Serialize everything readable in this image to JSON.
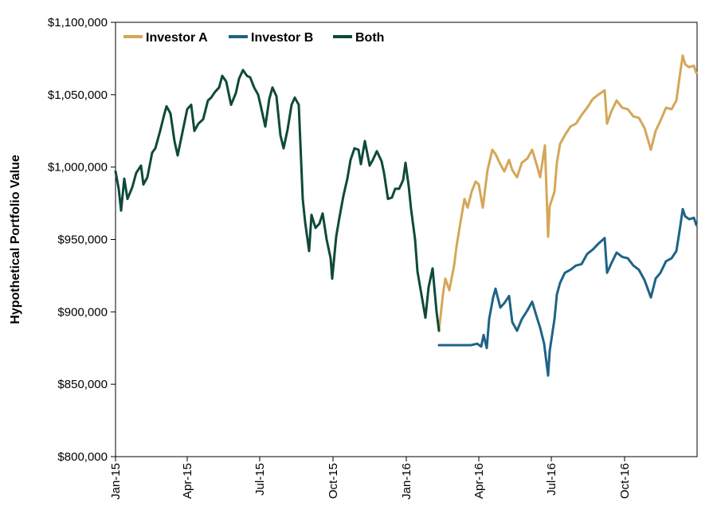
{
  "chart_data": {
    "type": "line",
    "title": "",
    "xlabel": "",
    "ylabel": "Hypothetical Portfolio Value",
    "ylim": [
      800000,
      1100000
    ],
    "xlim": [
      "2015-01-01",
      "2016-12-31"
    ],
    "grid": false,
    "legend_position": "top-left",
    "x_ticks": [
      {
        "date": "2015-01-01",
        "label": "Jan-15"
      },
      {
        "date": "2015-04-01",
        "label": "Apr-15"
      },
      {
        "date": "2015-07-01",
        "label": "Jul-15"
      },
      {
        "date": "2015-10-01",
        "label": "Oct-15"
      },
      {
        "date": "2016-01-01",
        "label": "Jan-16"
      },
      {
        "date": "2016-04-01",
        "label": "Apr-16"
      },
      {
        "date": "2016-07-01",
        "label": "Jul-16"
      },
      {
        "date": "2016-10-01",
        "label": "Oct-16"
      }
    ],
    "y_ticks": [
      {
        "value": 800000,
        "label": "$800,000"
      },
      {
        "value": 850000,
        "label": "$850,000"
      },
      {
        "value": 900000,
        "label": "$900,000"
      },
      {
        "value": 950000,
        "label": "$950,000"
      },
      {
        "value": 1000000,
        "label": "$1,000,000"
      },
      {
        "value": 1050000,
        "label": "$1,050,000"
      },
      {
        "value": 1100000,
        "label": "$1,100,000"
      }
    ],
    "series": [
      {
        "name": "Investor A",
        "color": "#D4A758",
        "points": [
          [
            "2016-02-11",
            887000
          ],
          [
            "2016-02-16",
            912000
          ],
          [
            "2016-02-19",
            923000
          ],
          [
            "2016-02-24",
            915000
          ],
          [
            "2016-03-01",
            932000
          ],
          [
            "2016-03-04",
            945000
          ],
          [
            "2016-03-09",
            962000
          ],
          [
            "2016-03-14",
            978000
          ],
          [
            "2016-03-18",
            972000
          ],
          [
            "2016-03-23",
            983000
          ],
          [
            "2016-03-28",
            990000
          ],
          [
            "2016-04-01",
            988000
          ],
          [
            "2016-04-06",
            972000
          ],
          [
            "2016-04-12",
            998000
          ],
          [
            "2016-04-18",
            1012000
          ],
          [
            "2016-04-22",
            1009000
          ],
          [
            "2016-04-28",
            1002000
          ],
          [
            "2016-05-03",
            997000
          ],
          [
            "2016-05-09",
            1005000
          ],
          [
            "2016-05-13",
            998000
          ],
          [
            "2016-05-19",
            993000
          ],
          [
            "2016-05-25",
            1003000
          ],
          [
            "2016-06-01",
            1006000
          ],
          [
            "2016-06-07",
            1012000
          ],
          [
            "2016-06-13",
            1001000
          ],
          [
            "2016-06-17",
            993000
          ],
          [
            "2016-06-23",
            1015000
          ],
          [
            "2016-06-27",
            952000
          ],
          [
            "2016-06-29",
            973000
          ],
          [
            "2016-07-05",
            983000
          ],
          [
            "2016-07-08",
            1003000
          ],
          [
            "2016-07-12",
            1016000
          ],
          [
            "2016-07-18",
            1022000
          ],
          [
            "2016-07-25",
            1028000
          ],
          [
            "2016-08-01",
            1030000
          ],
          [
            "2016-08-08",
            1036000
          ],
          [
            "2016-08-15",
            1041000
          ],
          [
            "2016-08-22",
            1047000
          ],
          [
            "2016-08-29",
            1050000
          ],
          [
            "2016-09-06",
            1053000
          ],
          [
            "2016-09-09",
            1030000
          ],
          [
            "2016-09-14",
            1038000
          ],
          [
            "2016-09-21",
            1046000
          ],
          [
            "2016-09-28",
            1041000
          ],
          [
            "2016-10-05",
            1040000
          ],
          [
            "2016-10-12",
            1035000
          ],
          [
            "2016-10-19",
            1034000
          ],
          [
            "2016-10-26",
            1027000
          ],
          [
            "2016-11-03",
            1012000
          ],
          [
            "2016-11-09",
            1025000
          ],
          [
            "2016-11-15",
            1032000
          ],
          [
            "2016-11-22",
            1041000
          ],
          [
            "2016-11-29",
            1040000
          ],
          [
            "2016-12-05",
            1046000
          ],
          [
            "2016-12-09",
            1062000
          ],
          [
            "2016-12-13",
            1077000
          ],
          [
            "2016-12-16",
            1071000
          ],
          [
            "2016-12-21",
            1069000
          ],
          [
            "2016-12-27",
            1070000
          ],
          [
            "2016-12-30",
            1065000
          ]
        ]
      },
      {
        "name": "Investor B",
        "color": "#1E6387",
        "points": [
          [
            "2016-02-11",
            877000
          ],
          [
            "2016-03-02",
            877000
          ],
          [
            "2016-03-15",
            877000
          ],
          [
            "2016-03-22",
            877000
          ],
          [
            "2016-03-30",
            878000
          ],
          [
            "2016-04-04",
            876000
          ],
          [
            "2016-04-07",
            884000
          ],
          [
            "2016-04-11",
            875000
          ],
          [
            "2016-04-14",
            895000
          ],
          [
            "2016-04-19",
            910000
          ],
          [
            "2016-04-22",
            916000
          ],
          [
            "2016-04-28",
            903000
          ],
          [
            "2016-05-03",
            906000
          ],
          [
            "2016-05-09",
            911000
          ],
          [
            "2016-05-13",
            893000
          ],
          [
            "2016-05-19",
            887000
          ],
          [
            "2016-05-25",
            895000
          ],
          [
            "2016-06-01",
            901000
          ],
          [
            "2016-06-07",
            907000
          ],
          [
            "2016-06-13",
            896000
          ],
          [
            "2016-06-17",
            889000
          ],
          [
            "2016-06-22",
            878000
          ],
          [
            "2016-06-27",
            856000
          ],
          [
            "2016-06-29",
            873000
          ],
          [
            "2016-07-05",
            895000
          ],
          [
            "2016-07-08",
            912000
          ],
          [
            "2016-07-12",
            920000
          ],
          [
            "2016-07-18",
            927000
          ],
          [
            "2016-07-25",
            929000
          ],
          [
            "2016-08-01",
            932000
          ],
          [
            "2016-08-08",
            933000
          ],
          [
            "2016-08-15",
            940000
          ],
          [
            "2016-08-22",
            943000
          ],
          [
            "2016-08-29",
            947000
          ],
          [
            "2016-09-06",
            951000
          ],
          [
            "2016-09-09",
            927000
          ],
          [
            "2016-09-14",
            933000
          ],
          [
            "2016-09-21",
            941000
          ],
          [
            "2016-09-28",
            938000
          ],
          [
            "2016-10-05",
            937000
          ],
          [
            "2016-10-12",
            932000
          ],
          [
            "2016-10-19",
            929000
          ],
          [
            "2016-10-26",
            922000
          ],
          [
            "2016-11-03",
            910000
          ],
          [
            "2016-11-09",
            923000
          ],
          [
            "2016-11-15",
            927000
          ],
          [
            "2016-11-22",
            935000
          ],
          [
            "2016-11-29",
            937000
          ],
          [
            "2016-12-05",
            942000
          ],
          [
            "2016-12-09",
            956000
          ],
          [
            "2016-12-13",
            971000
          ],
          [
            "2016-12-16",
            966000
          ],
          [
            "2016-12-21",
            964000
          ],
          [
            "2016-12-27",
            965000
          ],
          [
            "2016-12-30",
            960000
          ]
        ]
      },
      {
        "name": "Both",
        "color": "#0E4A3A",
        "points": [
          [
            "2015-01-01",
            997000
          ],
          [
            "2015-01-05",
            985000
          ],
          [
            "2015-01-08",
            970000
          ],
          [
            "2015-01-12",
            992000
          ],
          [
            "2015-01-16",
            978000
          ],
          [
            "2015-01-22",
            986000
          ],
          [
            "2015-01-27",
            996000
          ],
          [
            "2015-02-02",
            1001000
          ],
          [
            "2015-02-05",
            988000
          ],
          [
            "2015-02-10",
            993000
          ],
          [
            "2015-02-16",
            1010000
          ],
          [
            "2015-02-20",
            1013000
          ],
          [
            "2015-02-26",
            1025000
          ],
          [
            "2015-03-03",
            1036000
          ],
          [
            "2015-03-06",
            1042000
          ],
          [
            "2015-03-11",
            1037000
          ],
          [
            "2015-03-16",
            1018000
          ],
          [
            "2015-03-20",
            1008000
          ],
          [
            "2015-03-26",
            1024000
          ],
          [
            "2015-04-01",
            1040000
          ],
          [
            "2015-04-06",
            1043000
          ],
          [
            "2015-04-10",
            1025000
          ],
          [
            "2015-04-15",
            1030000
          ],
          [
            "2015-04-21",
            1033000
          ],
          [
            "2015-04-27",
            1046000
          ],
          [
            "2015-05-01",
            1048000
          ],
          [
            "2015-05-06",
            1052000
          ],
          [
            "2015-05-11",
            1055000
          ],
          [
            "2015-05-15",
            1063000
          ],
          [
            "2015-05-20",
            1059000
          ],
          [
            "2015-05-26",
            1043000
          ],
          [
            "2015-06-01",
            1051000
          ],
          [
            "2015-06-05",
            1061000
          ],
          [
            "2015-06-10",
            1067000
          ],
          [
            "2015-06-15",
            1063000
          ],
          [
            "2015-06-19",
            1062000
          ],
          [
            "2015-06-24",
            1055000
          ],
          [
            "2015-06-29",
            1050000
          ],
          [
            "2015-07-02",
            1043000
          ],
          [
            "2015-07-08",
            1028000
          ],
          [
            "2015-07-13",
            1047000
          ],
          [
            "2015-07-17",
            1055000
          ],
          [
            "2015-07-22",
            1049000
          ],
          [
            "2015-07-27",
            1022000
          ],
          [
            "2015-07-31",
            1013000
          ],
          [
            "2015-08-05",
            1026000
          ],
          [
            "2015-08-10",
            1043000
          ],
          [
            "2015-08-14",
            1048000
          ],
          [
            "2015-08-19",
            1043000
          ],
          [
            "2015-08-24",
            978000
          ],
          [
            "2015-08-27",
            962000
          ],
          [
            "2015-09-01",
            942000
          ],
          [
            "2015-09-04",
            967000
          ],
          [
            "2015-09-09",
            958000
          ],
          [
            "2015-09-14",
            961000
          ],
          [
            "2015-09-18",
            968000
          ],
          [
            "2015-09-23",
            950000
          ],
          [
            "2015-09-28",
            937000
          ],
          [
            "2015-09-30",
            923000
          ],
          [
            "2015-10-05",
            952000
          ],
          [
            "2015-10-09",
            965000
          ],
          [
            "2015-10-14",
            980000
          ],
          [
            "2015-10-19",
            992000
          ],
          [
            "2015-10-23",
            1005000
          ],
          [
            "2015-10-28",
            1013000
          ],
          [
            "2015-11-02",
            1012000
          ],
          [
            "2015-11-05",
            1002000
          ],
          [
            "2015-11-10",
            1018000
          ],
          [
            "2015-11-16",
            1001000
          ],
          [
            "2015-11-20",
            1005000
          ],
          [
            "2015-11-25",
            1011000
          ],
          [
            "2015-12-01",
            1004000
          ],
          [
            "2015-12-04",
            996000
          ],
          [
            "2015-12-09",
            978000
          ],
          [
            "2015-12-14",
            979000
          ],
          [
            "2015-12-18",
            985000
          ],
          [
            "2015-12-23",
            985000
          ],
          [
            "2015-12-28",
            991000
          ],
          [
            "2015-12-31",
            1003000
          ],
          [
            "2016-01-04",
            987000
          ],
          [
            "2016-01-07",
            971000
          ],
          [
            "2016-01-12",
            950000
          ],
          [
            "2016-01-15",
            928000
          ],
          [
            "2016-01-20",
            912000
          ],
          [
            "2016-01-25",
            896000
          ],
          [
            "2016-01-29",
            917000
          ],
          [
            "2016-02-03",
            930000
          ],
          [
            "2016-02-08",
            900000
          ],
          [
            "2016-02-11",
            887000
          ]
        ]
      }
    ]
  }
}
